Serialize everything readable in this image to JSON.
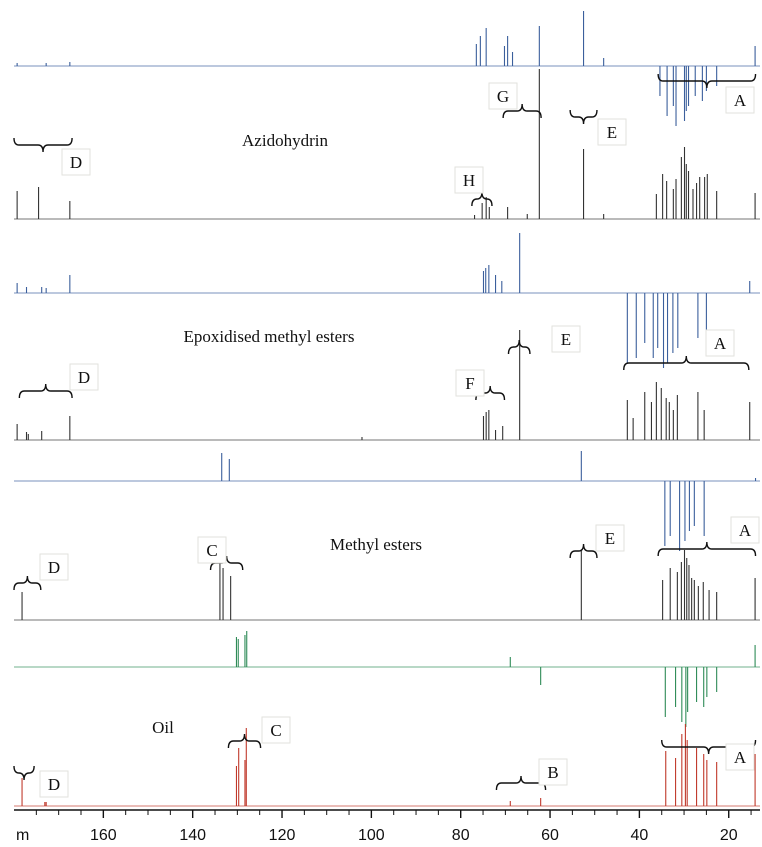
{
  "chart_data": {
    "type": "line",
    "axis": {
      "unit_label": "m",
      "xlim": [
        180,
        13
      ],
      "reversed": true,
      "ticks": [
        160,
        140,
        120,
        100,
        80,
        60,
        40,
        20
      ]
    },
    "colors": {
      "blue": "#3b5f9c",
      "dark": "#333333",
      "red": "#c0392b",
      "green": "#2e8b57",
      "orange": "#d98a1e"
    },
    "panels": [
      {
        "key": "azido",
        "title": "Azidohydrin",
        "spectra": [
          {
            "role": "dept",
            "color": "blue",
            "peaks": [
              [
                179.3,
                3
              ],
              [
                172.8,
                3
              ],
              [
                167.5,
                4
              ],
              [
                76.5,
                22
              ],
              [
                75.6,
                30
              ],
              [
                74.3,
                38
              ],
              [
                70.2,
                20
              ],
              [
                69.5,
                30
              ],
              [
                68.4,
                14
              ],
              [
                62.4,
                40
              ],
              [
                52.5,
                55
              ],
              [
                48.0,
                8
              ],
              [
                35.4,
                -30
              ],
              [
                33.8,
                -50
              ],
              [
                32.4,
                -40
              ],
              [
                31.8,
                -60
              ],
              [
                29.9,
                -55
              ],
              [
                29.5,
                -45
              ],
              [
                29.0,
                -40
              ],
              [
                27.5,
                -30
              ],
              [
                25.9,
                -35
              ],
              [
                25.0,
                -25
              ],
              [
                22.7,
                -20
              ],
              [
                14.1,
                20
              ]
            ]
          },
          {
            "role": "c13",
            "color": "dark",
            "peaks": [
              [
                179.3,
                28
              ],
              [
                174.5,
                32
              ],
              [
                167.5,
                18
              ],
              [
                76.9,
                4
              ],
              [
                75.2,
                16
              ],
              [
                74.3,
                22
              ],
              [
                73.6,
                12
              ],
              [
                69.5,
                12
              ],
              [
                65.1,
                5
              ],
              [
                62.4,
                150
              ],
              [
                52.5,
                70
              ],
              [
                48.0,
                5
              ],
              [
                36.2,
                25
              ],
              [
                34.8,
                45
              ],
              [
                33.9,
                38
              ],
              [
                32.4,
                30
              ],
              [
                31.8,
                40
              ],
              [
                30.6,
                62
              ],
              [
                29.9,
                72
              ],
              [
                29.5,
                55
              ],
              [
                29.0,
                48
              ],
              [
                28.0,
                30
              ],
              [
                27.2,
                36
              ],
              [
                26.5,
                42
              ],
              [
                25.4,
                42
              ],
              [
                24.8,
                45
              ],
              [
                22.7,
                28
              ],
              [
                14.1,
                26
              ]
            ]
          }
        ],
        "annotations": [
          {
            "text": "A",
            "from": 35.8,
            "to": 14.0
          },
          {
            "text": "D",
            "from": 180.0,
            "to": 167.0
          },
          {
            "text": "E",
            "from": 55.5,
            "to": 49.5
          },
          {
            "text": "G",
            "from": 70.5,
            "to": 62.0
          },
          {
            "text": "H",
            "from": 77.5,
            "to": 73.0
          }
        ]
      },
      {
        "key": "epoxy",
        "title": "Epoxidised methyl esters",
        "spectra": [
          {
            "role": "dept",
            "color": "blue",
            "peaks": [
              [
                179.3,
                10
              ],
              [
                177.2,
                6
              ],
              [
                173.8,
                6
              ],
              [
                172.8,
                5
              ],
              [
                167.5,
                18
              ],
              [
                74.9,
                22
              ],
              [
                74.4,
                25
              ],
              [
                73.7,
                28
              ],
              [
                72.2,
                18
              ],
              [
                70.8,
                12
              ],
              [
                66.8,
                60
              ],
              [
                42.7,
                -70
              ],
              [
                40.7,
                -65
              ],
              [
                38.8,
                -50
              ],
              [
                36.9,
                -65
              ],
              [
                35.9,
                -55
              ],
              [
                34.6,
                -75
              ],
              [
                33.7,
                -70
              ],
              [
                32.5,
                -60
              ],
              [
                31.4,
                -55
              ],
              [
                26.9,
                -45
              ],
              [
                25.0,
                -55
              ],
              [
                15.3,
                12
              ]
            ]
          },
          {
            "role": "c13",
            "color": "dark",
            "peaks": [
              [
                179.3,
                16
              ],
              [
                177.2,
                8
              ],
              [
                176.8,
                6
              ],
              [
                173.8,
                9
              ],
              [
                167.5,
                24
              ],
              [
                102.1,
                3
              ],
              [
                74.9,
                24
              ],
              [
                74.3,
                28
              ],
              [
                73.7,
                30
              ],
              [
                72.2,
                10
              ],
              [
                70.6,
                14
              ],
              [
                66.8,
                110
              ],
              [
                42.7,
                40
              ],
              [
                41.4,
                22
              ],
              [
                38.8,
                48
              ],
              [
                37.3,
                38
              ],
              [
                36.2,
                58
              ],
              [
                35.1,
                52
              ],
              [
                34.0,
                42
              ],
              [
                33.3,
                38
              ],
              [
                32.4,
                30
              ],
              [
                31.5,
                45
              ],
              [
                26.9,
                48
              ],
              [
                25.5,
                30
              ],
              [
                15.3,
                38
              ]
            ]
          }
        ],
        "annotations": [
          {
            "text": "A",
            "from": 43.5,
            "to": 15.5
          },
          {
            "text": "D",
            "from": 178.8,
            "to": 167.0
          },
          {
            "text": "E",
            "from": 69.3,
            "to": 64.5
          },
          {
            "text": "F",
            "from": 76.6,
            "to": 70.2
          }
        ]
      },
      {
        "key": "methyl",
        "title": "Methyl esters",
        "spectra": [
          {
            "role": "dept",
            "color": "blue",
            "peaks": [
              [
                133.5,
                28
              ],
              [
                131.8,
                22
              ],
              [
                53.0,
                30
              ],
              [
                34.3,
                -65
              ],
              [
                33.1,
                -55
              ],
              [
                31.0,
                -70
              ],
              [
                29.8,
                -60
              ],
              [
                28.8,
                -50
              ],
              [
                27.7,
                -45
              ],
              [
                25.5,
                -55
              ],
              [
                14.0,
                3
              ]
            ]
          },
          {
            "role": "c13",
            "color": "dark",
            "peaks": [
              [
                178.2,
                28
              ],
              [
                133.9,
                60
              ],
              [
                133.2,
                52
              ],
              [
                131.5,
                44
              ],
              [
                53.0,
                70
              ],
              [
                34.8,
                40
              ],
              [
                33.1,
                52
              ],
              [
                31.5,
                48
              ],
              [
                30.6,
                58
              ],
              [
                29.9,
                70
              ],
              [
                29.4,
                62
              ],
              [
                28.9,
                55
              ],
              [
                28.3,
                42
              ],
              [
                27.7,
                40
              ],
              [
                26.8,
                34
              ],
              [
                25.7,
                38
              ],
              [
                24.4,
                30
              ],
              [
                22.7,
                28
              ],
              [
                14.1,
                42
              ]
            ]
          }
        ],
        "annotations": [
          {
            "text": "A",
            "from": 35.8,
            "to": 14.0
          },
          {
            "text": "C",
            "from": 136.0,
            "to": 128.8
          },
          {
            "text": "D",
            "from": 180.0,
            "to": 174.0
          },
          {
            "text": "E",
            "from": 55.5,
            "to": 49.5
          }
        ]
      },
      {
        "key": "oil",
        "title": "Oil",
        "spectra": [
          {
            "role": "dept",
            "color": "green",
            "peaks": [
              [
                130.2,
                30
              ],
              [
                129.8,
                28
              ],
              [
                128.3,
                32
              ],
              [
                127.9,
                36
              ],
              [
                68.9,
                10
              ],
              [
                62.1,
                -18
              ],
              [
                34.2,
                -50
              ],
              [
                31.9,
                -40
              ],
              [
                30.5,
                -55
              ],
              [
                29.6,
                -60
              ],
              [
                29.2,
                -45
              ],
              [
                27.2,
                -35
              ],
              [
                25.6,
                -40
              ],
              [
                24.9,
                -30
              ],
              [
                22.7,
                -25
              ],
              [
                14.1,
                22
              ]
            ]
          },
          {
            "role": "c13",
            "color": "red",
            "peaks": [
              [
                178.2,
                28
              ],
              [
                173.1,
                4
              ],
              [
                172.8,
                4
              ],
              [
                130.2,
                40
              ],
              [
                129.7,
                58
              ],
              [
                128.3,
                46
              ],
              [
                128.0,
                78
              ],
              [
                68.9,
                5
              ],
              [
                62.1,
                8
              ],
              [
                34.1,
                55
              ],
              [
                31.9,
                48
              ],
              [
                30.5,
                72
              ],
              [
                29.7,
                82
              ],
              [
                29.3,
                66
              ],
              [
                27.2,
                58
              ],
              [
                25.6,
                52
              ],
              [
                24.9,
                46
              ],
              [
                22.7,
                44
              ],
              [
                14.1,
                52
              ]
            ]
          }
        ],
        "annotations": [
          {
            "text": "A",
            "from": 35.0,
            "to": 14.0
          },
          {
            "text": "B",
            "from": 72.0,
            "to": 61.0
          },
          {
            "text": "C",
            "from": 132.0,
            "to": 124.8
          },
          {
            "text": "D",
            "from": 180.0,
            "to": 175.5
          }
        ]
      }
    ]
  }
}
